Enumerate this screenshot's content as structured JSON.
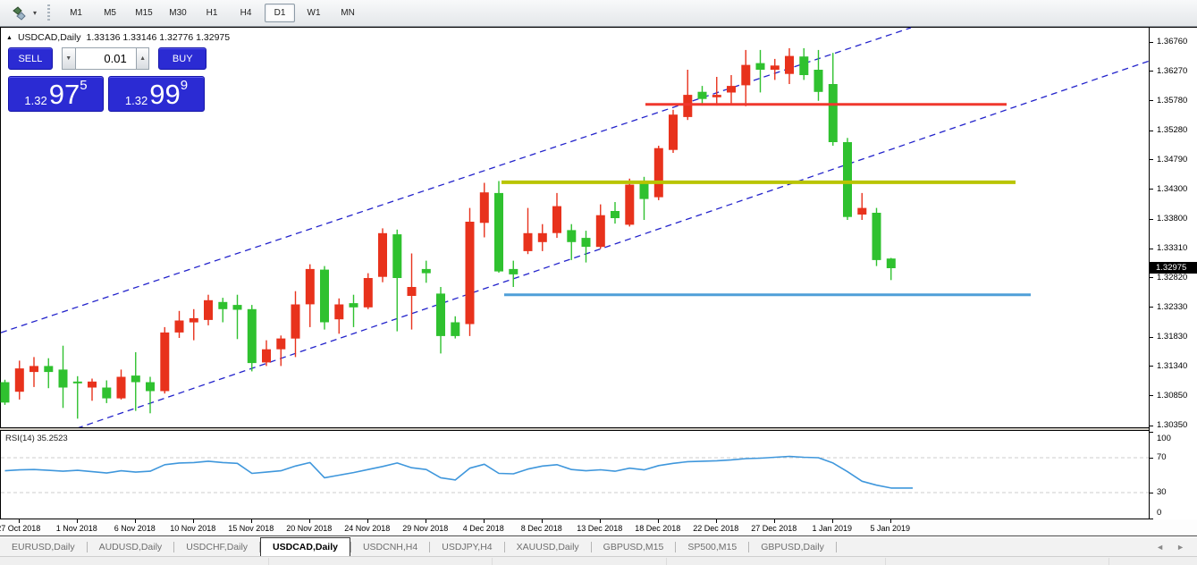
{
  "toolbar": {
    "periods": [
      "M1",
      "M5",
      "M15",
      "M30",
      "H1",
      "H4",
      "D1",
      "W1",
      "MN"
    ],
    "active_period": "D1",
    "icon": "timeframes-icon",
    "dropdown": "▾"
  },
  "chart": {
    "title": {
      "arrow": "▲",
      "symbol": "USDCAD,Daily",
      "ohlc_text": "1.33136 1.33146 1.32776 1.32975"
    },
    "trade_panel": {
      "sell_label": "SELL",
      "buy_label": "BUY",
      "volume": "0.01",
      "spin_down": "▼",
      "spin_up": "▲",
      "sell_price": {
        "prefix": "1.32",
        "big": "97",
        "sup": "5",
        "full": "1.32975"
      },
      "buy_price": {
        "prefix": "1.32",
        "big": "99",
        "sup": "9",
        "full": "1.32999"
      }
    },
    "price_axis_labels": [
      "1.36760",
      "1.36270",
      "1.35780",
      "1.35280",
      "1.34790",
      "1.34300",
      "1.33800",
      "1.33310",
      "1.32820",
      "1.32330",
      "1.31830",
      "1.31340",
      "1.30850",
      "1.30350"
    ],
    "current_price_label": "1.32975",
    "date_axis_labels": [
      "27 Oct 2018",
      "1 Nov 2018",
      "6 Nov 2018",
      "10 Nov 2018",
      "15 Nov 2018",
      "20 Nov 2018",
      "24 Nov 2018",
      "29 Nov 2018",
      "4 Dec 2018",
      "8 Dec 2018",
      "13 Dec 2018",
      "18 Dec 2018",
      "22 Dec 2018",
      "27 Dec 2018",
      "1 Jan 2019",
      "5 Jan 2019"
    ]
  },
  "rsi_panel": {
    "label": "RSI(14) 35.2523",
    "scale_labels": [
      "100",
      "70",
      "30",
      "0"
    ]
  },
  "tabs": {
    "items": [
      "EURUSD,Daily",
      "AUDUSD,Daily",
      "USDCHF,Daily",
      "USDCAD,Daily",
      "USDCNH,H4",
      "USDJPY,H4",
      "XAUUSD,Daily",
      "GBPUSD,M15",
      "SP500,M15",
      "GBPUSD,Daily"
    ],
    "active_index": 3,
    "scroll_left": "◄",
    "scroll_right": "►"
  },
  "colors": {
    "bull_candle": "#e8321c",
    "bear_candle": "#2fc12f",
    "resistance_line": "#f0382e",
    "pivot_line": "#b9c400",
    "support_line": "#4f9fd8",
    "channel_line": "#2323cb",
    "rsi_line": "#3f97dc",
    "rsi_grid": "#cccccc",
    "trade_blue": "#2b2bd3"
  },
  "chart_data": {
    "type": "candlestick",
    "title": "USDCAD,Daily",
    "ylim": [
      1.3035,
      1.3676
    ],
    "y_tick_step": 0.0049,
    "grid": false,
    "x_labels": [
      "27 Oct 2018",
      "1 Nov 2018",
      "6 Nov 2018",
      "10 Nov 2018",
      "15 Nov 2018",
      "20 Nov 2018",
      "24 Nov 2018",
      "29 Nov 2018",
      "4 Dec 2018",
      "8 Dec 2018",
      "13 Dec 2018",
      "18 Dec 2018",
      "22 Dec 2018",
      "27 Dec 2018",
      "1 Jan 2019",
      "5 Jan 2019"
    ],
    "first_label_bar": 1,
    "bars_per_label": 4,
    "current_price": 1.32975,
    "last_ohlc": {
      "open": 1.33136,
      "high": 1.33146,
      "low": 1.32776,
      "close": 1.32975
    },
    "ohlc": [
      [
        1.3107,
        1.3111,
        1.3069,
        1.3073
      ],
      [
        1.3091,
        1.3143,
        1.3078,
        1.313
      ],
      [
        1.3124,
        1.3149,
        1.3099,
        1.3134
      ],
      [
        1.3134,
        1.3147,
        1.3097,
        1.3124
      ],
      [
        1.3128,
        1.3168,
        1.3064,
        1.3098
      ],
      [
        1.3108,
        1.3117,
        1.3046,
        1.3105
      ],
      [
        1.3098,
        1.3113,
        1.3076,
        1.3108
      ],
      [
        1.3098,
        1.311,
        1.3072,
        1.308
      ],
      [
        1.308,
        1.3128,
        1.3078,
        1.3116
      ],
      [
        1.3118,
        1.3157,
        1.3059,
        1.3107
      ],
      [
        1.3107,
        1.3116,
        1.3055,
        1.3092
      ],
      [
        1.3092,
        1.3199,
        1.3088,
        1.319
      ],
      [
        1.319,
        1.3226,
        1.3181,
        1.321
      ],
      [
        1.3207,
        1.3229,
        1.3177,
        1.3214
      ],
      [
        1.3211,
        1.3253,
        1.3202,
        1.3244
      ],
      [
        1.3241,
        1.3248,
        1.3207,
        1.3229
      ],
      [
        1.3236,
        1.3253,
        1.3179,
        1.3228
      ],
      [
        1.3229,
        1.3236,
        1.3125,
        1.3139
      ],
      [
        1.314,
        1.3177,
        1.3134,
        1.3162
      ],
      [
        1.3162,
        1.3185,
        1.3134,
        1.318
      ],
      [
        1.318,
        1.3259,
        1.3149,
        1.3237
      ],
      [
        1.3237,
        1.3304,
        1.3199,
        1.3296
      ],
      [
        1.3295,
        1.3301,
        1.3195,
        1.3207
      ],
      [
        1.3212,
        1.3247,
        1.3188,
        1.3237
      ],
      [
        1.3239,
        1.3253,
        1.3199,
        1.3232
      ],
      [
        1.3232,
        1.3289,
        1.3229,
        1.3281
      ],
      [
        1.3283,
        1.3364,
        1.3274,
        1.3356
      ],
      [
        1.3354,
        1.3362,
        1.3192,
        1.3281
      ],
      [
        1.3251,
        1.3322,
        1.3195,
        1.3266
      ],
      [
        1.3296,
        1.331,
        1.3273,
        1.3289
      ],
      [
        1.3255,
        1.3266,
        1.3155,
        1.3184
      ],
      [
        1.3207,
        1.3217,
        1.318,
        1.3184
      ],
      [
        1.3204,
        1.3398,
        1.3184,
        1.3375
      ],
      [
        1.3373,
        1.344,
        1.3349,
        1.3424
      ],
      [
        1.3423,
        1.3443,
        1.329,
        1.3292
      ],
      [
        1.3296,
        1.331,
        1.3266,
        1.3287
      ],
      [
        1.3326,
        1.3398,
        1.3321,
        1.3356
      ],
      [
        1.3341,
        1.3371,
        1.3326,
        1.3356
      ],
      [
        1.3356,
        1.3423,
        1.3348,
        1.3401
      ],
      [
        1.3361,
        1.3371,
        1.3311,
        1.3341
      ],
      [
        1.3348,
        1.336,
        1.3307,
        1.3333
      ],
      [
        1.3333,
        1.3404,
        1.333,
        1.3386
      ],
      [
        1.3393,
        1.3408,
        1.3372,
        1.3381
      ],
      [
        1.337,
        1.3447,
        1.3367,
        1.3437
      ],
      [
        1.3441,
        1.345,
        1.3378,
        1.3413
      ],
      [
        1.3416,
        1.3502,
        1.3411,
        1.3498
      ],
      [
        1.3495,
        1.3562,
        1.349,
        1.3554
      ],
      [
        1.355,
        1.3629,
        1.3545,
        1.3587
      ],
      [
        1.3592,
        1.3602,
        1.3569,
        1.358
      ],
      [
        1.3583,
        1.3617,
        1.3569,
        1.3587
      ],
      [
        1.3591,
        1.362,
        1.3572,
        1.3602
      ],
      [
        1.3603,
        1.3662,
        1.3568,
        1.3637
      ],
      [
        1.364,
        1.3662,
        1.3591,
        1.3629
      ],
      [
        1.3629,
        1.3647,
        1.3612,
        1.3636
      ],
      [
        1.3622,
        1.3665,
        1.3605,
        1.3652
      ],
      [
        1.3651,
        1.3665,
        1.3612,
        1.362
      ],
      [
        1.3629,
        1.3662,
        1.3577,
        1.3592
      ],
      [
        1.3605,
        1.3657,
        1.3502,
        1.3508
      ],
      [
        1.3508,
        1.3515,
        1.3378,
        1.3383
      ],
      [
        1.3387,
        1.3423,
        1.3378,
        1.3398
      ],
      [
        1.339,
        1.3398,
        1.3301,
        1.3311
      ],
      [
        1.33136,
        1.33146,
        1.32776,
        1.32975
      ]
    ],
    "horizontal_lines": [
      {
        "name": "resistance",
        "price": 1.3571,
        "x1": 721,
        "x2": 1125,
        "color": "#f0382e",
        "width": 3
      },
      {
        "name": "pivot",
        "price": 1.3441,
        "x1": 560,
        "x2": 1135,
        "color": "#b9c400",
        "width": 4
      },
      {
        "name": "support",
        "price": 1.3253,
        "x1": 563,
        "x2": 1152,
        "color": "#4f9fd8",
        "width": 3
      }
    ],
    "channel_lines": [
      {
        "name": "upper",
        "x1": 0,
        "price1": 1.31898,
        "x2": 1018,
        "price2": 1.36992
      },
      {
        "name": "lower",
        "x1": 85,
        "price1": 1.303,
        "x2": 1285,
        "price2": 1.36439
      }
    ],
    "rsi": {
      "period": 14,
      "current": 35.2523,
      "levels": [
        100,
        70,
        30,
        0
      ],
      "dashed_levels": [
        70,
        30
      ],
      "values": [
        55,
        56,
        56.5,
        55.5,
        54.5,
        55.5,
        54,
        52.5,
        55,
        53.5,
        54.5,
        62,
        64,
        64.5,
        66,
        64.5,
        63.5,
        52,
        53.5,
        55,
        60.5,
        64.5,
        47,
        50,
        53,
        56.5,
        60,
        64,
        58.5,
        56.5,
        47,
        44.5,
        58,
        62.5,
        52,
        51.5,
        57,
        60.5,
        62,
        56.5,
        55,
        56.2,
        54.5,
        58,
        56,
        61,
        63.5,
        65.5,
        66,
        66.5,
        67.5,
        69,
        69.5,
        70.5,
        71.5,
        70.5,
        70,
        64,
        54,
        43,
        38.5,
        35.25
      ]
    }
  }
}
